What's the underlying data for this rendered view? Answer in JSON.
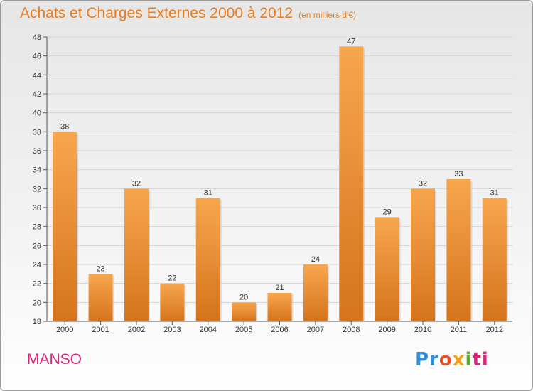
{
  "title": "Achats et Charges Externes 2000 à 2012",
  "subtitle": "(en milliers d'€)",
  "commune": "MANSO",
  "logo": {
    "p1": "Pr",
    "p2": "o",
    "p3": "x",
    "p4": "i",
    "p5": "ti"
  },
  "colors": {
    "bar_light": "#f7a64e",
    "bar_dark": "#d5741c",
    "title": "#e87c1e",
    "commune": "#d4297a"
  },
  "chart_data": {
    "type": "bar",
    "categories": [
      "2000",
      "2001",
      "2002",
      "2003",
      "2004",
      "2005",
      "2006",
      "2007",
      "2008",
      "2009",
      "2010",
      "2011",
      "2012"
    ],
    "values": [
      38,
      23,
      32,
      22,
      31,
      20,
      21,
      24,
      47,
      29,
      32,
      33,
      31
    ],
    "ylim": [
      18,
      48
    ],
    "yticks": [
      18,
      20,
      22,
      24,
      26,
      28,
      30,
      32,
      34,
      36,
      38,
      40,
      42,
      44,
      46,
      48
    ],
    "grid": true,
    "data_labels": true
  }
}
